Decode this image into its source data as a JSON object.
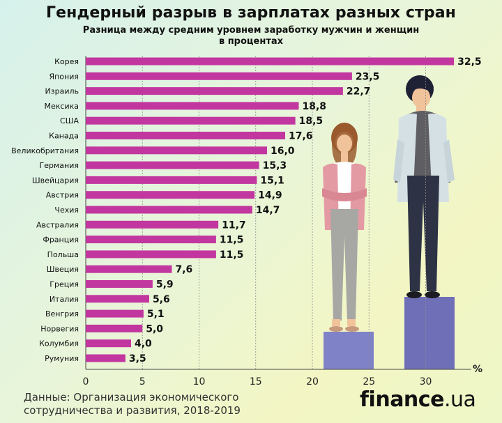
{
  "title": "Гендерный разрыв в зарплатах разных стран",
  "subtitle_line1": "Разница между средним уровнем заработку мужчин и женщин",
  "subtitle_line2": "в процентах",
  "source_line1": "Данные: Организация экономического",
  "source_line2": "сотрудничества и развития, 2018-2019",
  "brand_main": "finance",
  "brand_tld": ".ua",
  "colors": {
    "bar": "#c2379f",
    "pedestal_left": "#7f82c7",
    "pedestal_right": "#6f6fb8"
  },
  "chart_data": {
    "type": "bar",
    "orientation": "horizontal",
    "categories": [
      "Корея",
      "Япония",
      "Израиль",
      "Мексика",
      "США",
      "Канада",
      "Великобритания",
      "Германия",
      "Швейцария",
      "Австрия",
      "Чехия",
      "Австралия",
      "Франция",
      "Польша",
      "Швеция",
      "Греция",
      "Италия",
      "Венгрия",
      "Норвегия",
      "Колумбия",
      "Румуния"
    ],
    "values": [
      32.5,
      23.5,
      22.7,
      18.8,
      18.5,
      17.6,
      16.0,
      15.3,
      15.1,
      14.9,
      14.7,
      11.7,
      11.5,
      11.5,
      7.6,
      5.9,
      5.6,
      5.1,
      5.0,
      4.0,
      3.5
    ],
    "value_labels": [
      "32,5",
      "23,5",
      "22,7",
      "18,8",
      "18,5",
      "17,6",
      "16,0",
      "15,3",
      "15,1",
      "14,9",
      "14,7",
      "11,7",
      "11,5",
      "11,5",
      "7,6",
      "5,9",
      "5,6",
      "5,1",
      "5,0",
      "4,0",
      "3,5"
    ],
    "x_ticks": [
      "0",
      "5",
      "10",
      "15",
      "20",
      "25",
      "30"
    ],
    "x_tick_values": [
      0,
      5,
      10,
      15,
      20,
      25,
      30
    ],
    "x_unit": "%",
    "xlim": [
      0,
      34
    ],
    "grid": "vertical dashed"
  }
}
